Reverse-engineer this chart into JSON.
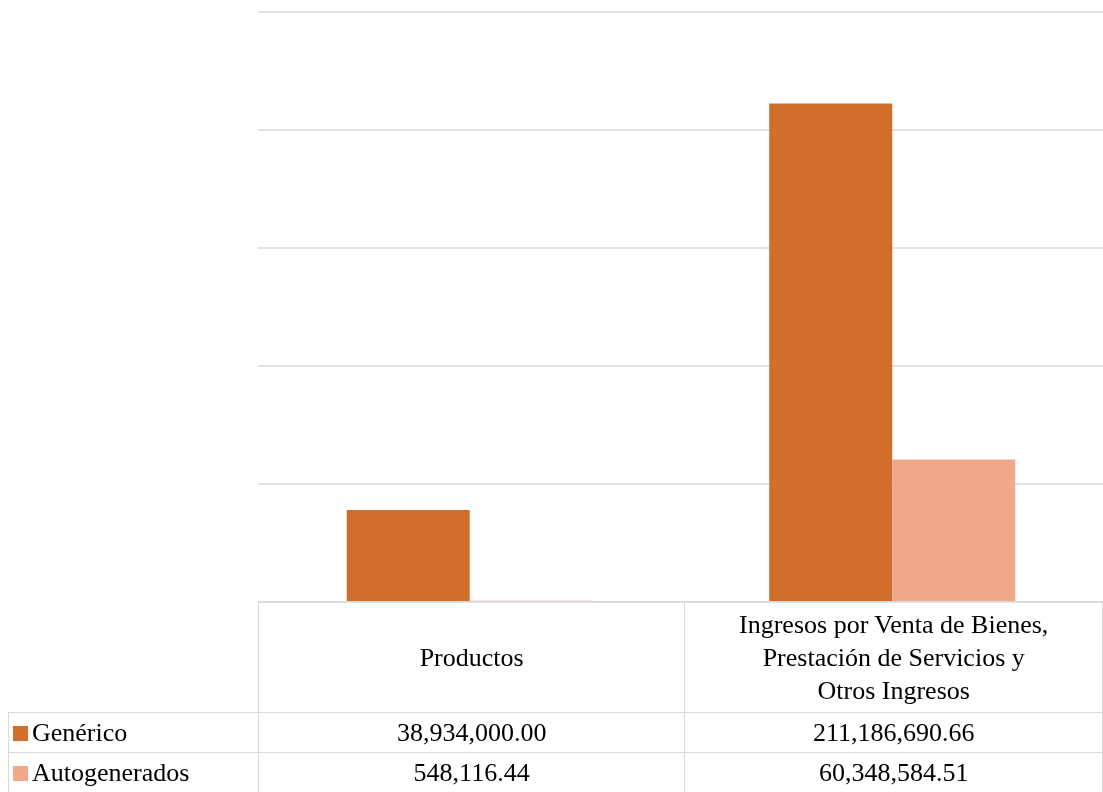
{
  "chart_data": {
    "type": "bar",
    "categories": [
      "Productos",
      "Ingresos por Venta de Bienes, Prestación de Servicios y Otros Ingresos"
    ],
    "series": [
      {
        "name": "Genérico",
        "color": "#d26e2b",
        "values": [
          38934000,
          211186690.66
        ],
        "value_labels": [
          "38,934,000.00",
          "211,186,690.66"
        ]
      },
      {
        "name": "Autogenerados",
        "color": "#f0a98a",
        "values": [
          548116.44,
          60348584.51
        ],
        "value_labels": [
          "548,116.44",
          "60,348,584.51"
        ]
      }
    ],
    "ylim": [
      0,
      250000000
    ],
    "tick_labels": "x",
    "grid": "y",
    "legend": "bottom"
  }
}
